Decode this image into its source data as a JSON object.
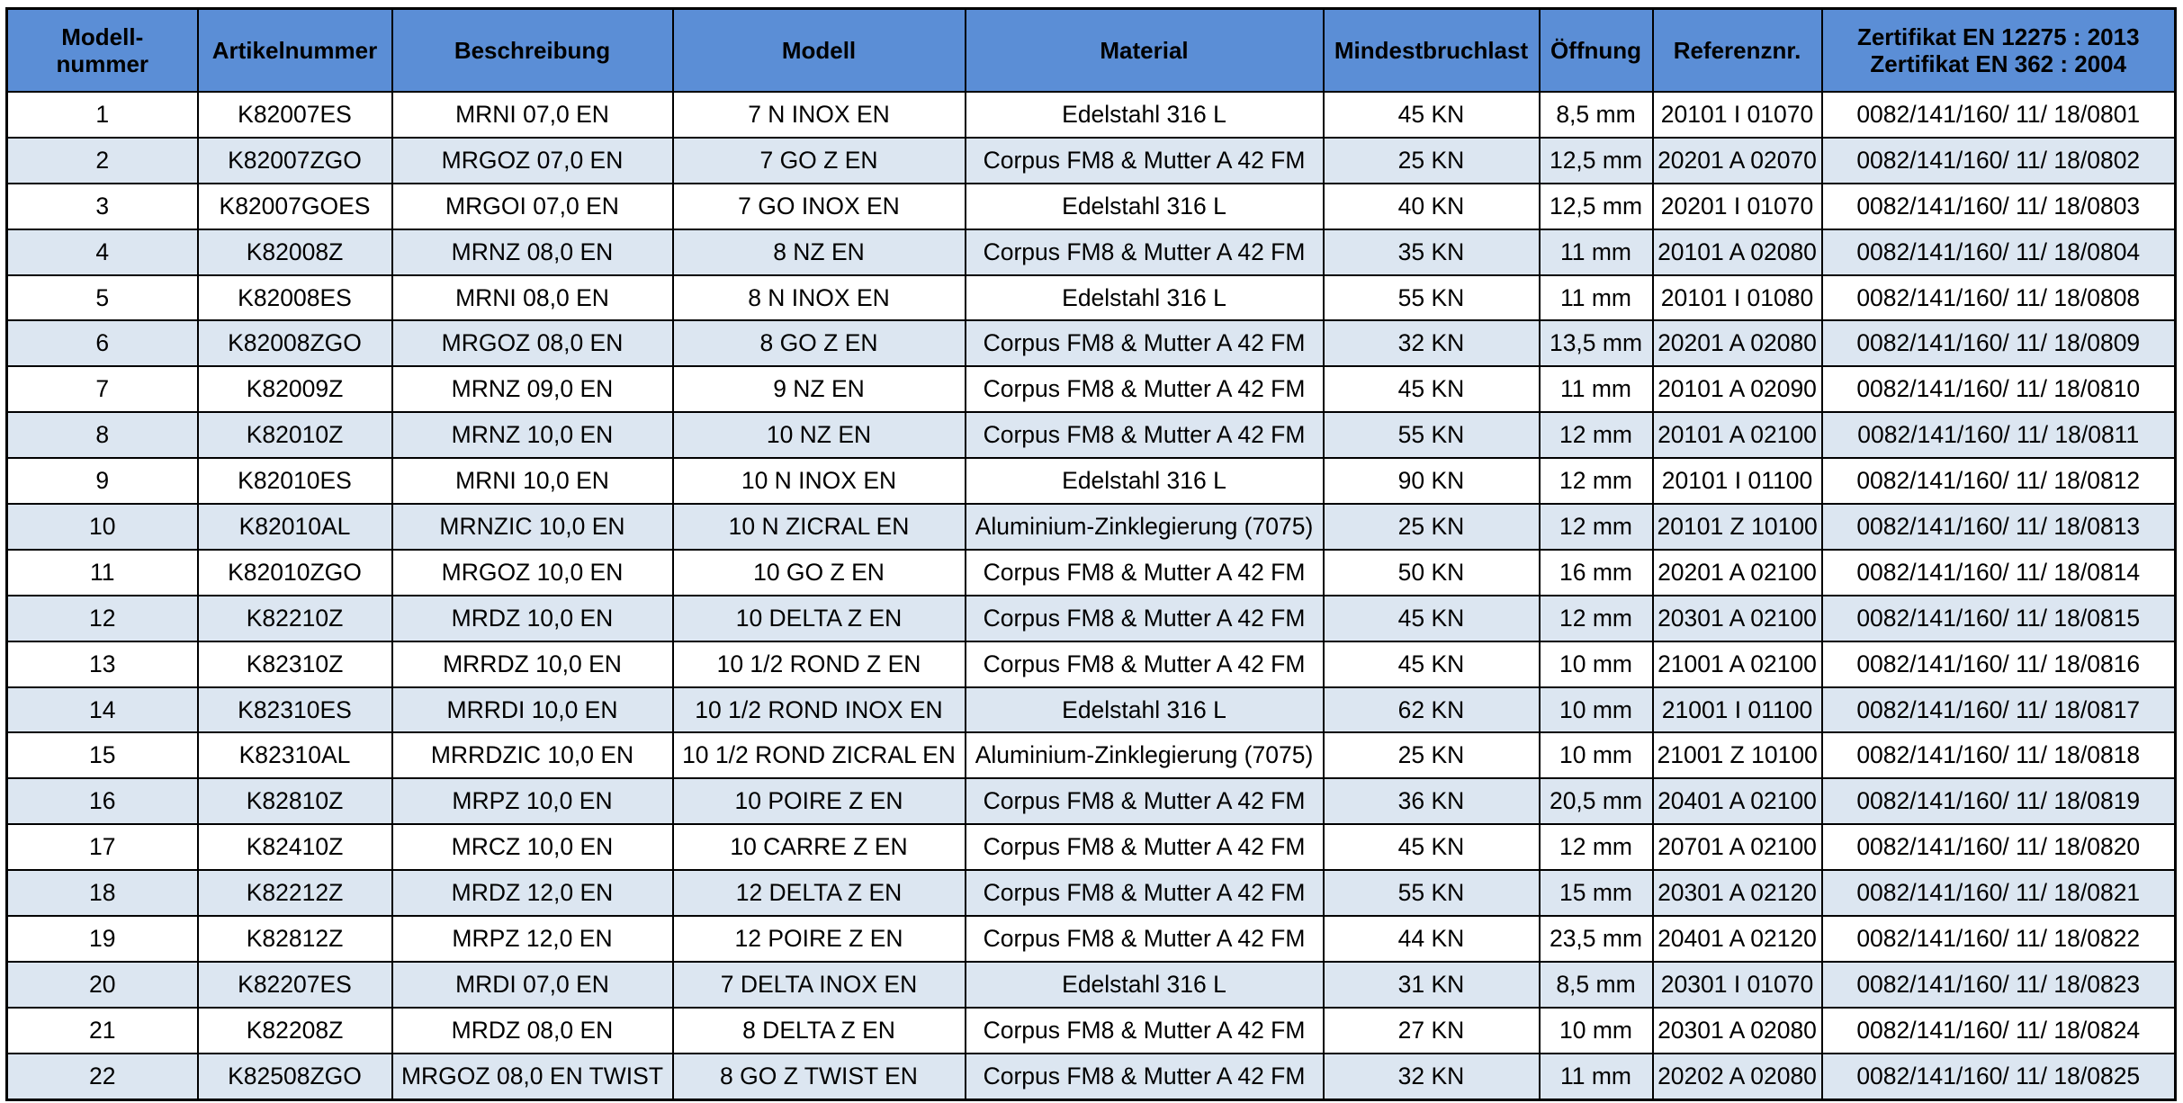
{
  "colors": {
    "header_bg": "#5b8ed6",
    "row_alt_bg": "#dce6f1",
    "row_bg": "#ffffff",
    "border": "#000000"
  },
  "headers": [
    {
      "lines": [
        "Modell-",
        "nummer"
      ]
    },
    {
      "lines": [
        "Artikelnummer"
      ]
    },
    {
      "lines": [
        "Beschreibung"
      ]
    },
    {
      "lines": [
        "Modell"
      ]
    },
    {
      "lines": [
        "Material"
      ]
    },
    {
      "lines": [
        "Mindestbruchlast"
      ]
    },
    {
      "lines": [
        "Öffnung"
      ]
    },
    {
      "lines": [
        "Referenznr."
      ]
    },
    {
      "lines": [
        "Zertifikat EN 12275 : 2013",
        "Zertifikat EN 362 : 2004"
      ]
    }
  ],
  "rows": [
    [
      "1",
      "K82007ES",
      "MRNI 07,0 EN",
      "7 N INOX EN",
      "Edelstahl 316 L",
      "45 KN",
      "8,5 mm",
      "20101 I 01070",
      "0082/141/160/ 11/ 18/0801"
    ],
    [
      "2",
      "K82007ZGO",
      "MRGOZ 07,0 EN",
      "7 GO Z EN",
      "Corpus FM8 & Mutter A 42 FM",
      "25 KN",
      "12,5 mm",
      "20201 A 02070",
      "0082/141/160/ 11/ 18/0802"
    ],
    [
      "3",
      "K82007GOES",
      "MRGOI 07,0 EN",
      "7 GO INOX EN",
      "Edelstahl 316 L",
      "40 KN",
      "12,5 mm",
      "20201 I 01070",
      "0082/141/160/ 11/ 18/0803"
    ],
    [
      "4",
      "K82008Z",
      "MRNZ 08,0 EN",
      "8 NZ EN",
      "Corpus FM8 & Mutter A 42 FM",
      "35 KN",
      "11 mm",
      "20101 A 02080",
      "0082/141/160/ 11/ 18/0804"
    ],
    [
      "5",
      "K82008ES",
      "MRNI 08,0 EN",
      "8 N INOX EN",
      "Edelstahl 316 L",
      "55 KN",
      "11 mm",
      "20101 I 01080",
      "0082/141/160/ 11/ 18/0808"
    ],
    [
      "6",
      "K82008ZGO",
      "MRGOZ 08,0 EN",
      "8 GO Z EN",
      "Corpus FM8 & Mutter A 42 FM",
      "32 KN",
      "13,5 mm",
      "20201 A 02080",
      "0082/141/160/ 11/ 18/0809"
    ],
    [
      "7",
      "K82009Z",
      "MRNZ 09,0 EN",
      "9 NZ EN",
      "Corpus FM8 & Mutter A 42 FM",
      "45 KN",
      "11 mm",
      "20101 A 02090",
      "0082/141/160/ 11/ 18/0810"
    ],
    [
      "8",
      "K82010Z",
      "MRNZ 10,0 EN",
      "10 NZ EN",
      "Corpus FM8 & Mutter A 42 FM",
      "55 KN",
      "12 mm",
      "20101 A 02100",
      "0082/141/160/ 11/ 18/0811"
    ],
    [
      "9",
      "K82010ES",
      "MRNI 10,0 EN",
      "10 N INOX EN",
      "Edelstahl 316 L",
      "90 KN",
      "12 mm",
      "20101 I 01100",
      "0082/141/160/ 11/ 18/0812"
    ],
    [
      "10",
      "K82010AL",
      "MRNZIC 10,0 EN",
      "10 N ZICRAL EN",
      "Aluminium-Zinklegierung (7075)",
      "25 KN",
      "12 mm",
      "20101 Z 10100",
      "0082/141/160/ 11/ 18/0813"
    ],
    [
      "11",
      "K82010ZGO",
      "MRGOZ 10,0 EN",
      "10 GO Z EN",
      "Corpus FM8 & Mutter A 42 FM",
      "50 KN",
      "16 mm",
      "20201 A 02100",
      "0082/141/160/ 11/ 18/0814"
    ],
    [
      "12",
      "K82210Z",
      "MRDZ 10,0 EN",
      "10 DELTA Z EN",
      "Corpus FM8 & Mutter A 42 FM",
      "45 KN",
      "12 mm",
      "20301 A 02100",
      "0082/141/160/ 11/ 18/0815"
    ],
    [
      "13",
      "K82310Z",
      "MRRDZ 10,0 EN",
      "10 1/2 ROND Z EN",
      "Corpus FM8 & Mutter A 42 FM",
      "45 KN",
      "10 mm",
      "21001 A 02100",
      "0082/141/160/ 11/ 18/0816"
    ],
    [
      "14",
      "K82310ES",
      "MRRDI 10,0 EN",
      "10 1/2 ROND INOX EN",
      "Edelstahl 316 L",
      "62 KN",
      "10 mm",
      "21001 I 01100",
      "0082/141/160/ 11/ 18/0817"
    ],
    [
      "15",
      "K82310AL",
      "MRRDZIC 10,0 EN",
      "10 1/2 ROND ZICRAL EN",
      "Aluminium-Zinklegierung (7075)",
      "25 KN",
      "10 mm",
      "21001 Z 10100",
      "0082/141/160/ 11/ 18/0818"
    ],
    [
      "16",
      "K82810Z",
      "MRPZ 10,0 EN",
      "10 POIRE Z EN",
      "Corpus FM8 & Mutter A 42 FM",
      "36 KN",
      "20,5 mm",
      "20401 A 02100",
      "0082/141/160/ 11/ 18/0819"
    ],
    [
      "17",
      "K82410Z",
      "MRCZ 10,0 EN",
      "10 CARRE Z EN",
      "Corpus FM8 & Mutter A 42 FM",
      "45 KN",
      "12 mm",
      "20701 A 02100",
      "0082/141/160/ 11/ 18/0820"
    ],
    [
      "18",
      "K82212Z",
      "MRDZ 12,0 EN",
      "12 DELTA Z EN",
      "Corpus FM8 & Mutter A 42 FM",
      "55 KN",
      "15 mm",
      "20301 A 02120",
      "0082/141/160/ 11/ 18/0821"
    ],
    [
      "19",
      "K82812Z",
      "MRPZ 12,0 EN",
      "12 POIRE Z EN",
      "Corpus FM8 & Mutter A 42 FM",
      "44 KN",
      "23,5 mm",
      "20401 A 02120",
      "0082/141/160/ 11/ 18/0822"
    ],
    [
      "20",
      "K82207ES",
      "MRDI 07,0 EN",
      "7 DELTA INOX EN",
      "Edelstahl 316 L",
      "31 KN",
      "8,5 mm",
      "20301 I 01070",
      "0082/141/160/ 11/ 18/0823"
    ],
    [
      "21",
      "K82208Z",
      "MRDZ 08,0 EN",
      "8 DELTA Z EN",
      "Corpus FM8 & Mutter A 42 FM",
      "27 KN",
      "10 mm",
      "20301 A 02080",
      "0082/141/160/ 11/ 18/0824"
    ],
    [
      "22",
      "K82508ZGO",
      "MRGOZ 08,0 EN TWIST",
      "8 GO Z TWIST EN",
      "Corpus FM8 & Mutter A 42 FM",
      "32 KN",
      "11 mm",
      "20202 A 02080",
      "0082/141/160/ 11/ 18/0825"
    ]
  ]
}
